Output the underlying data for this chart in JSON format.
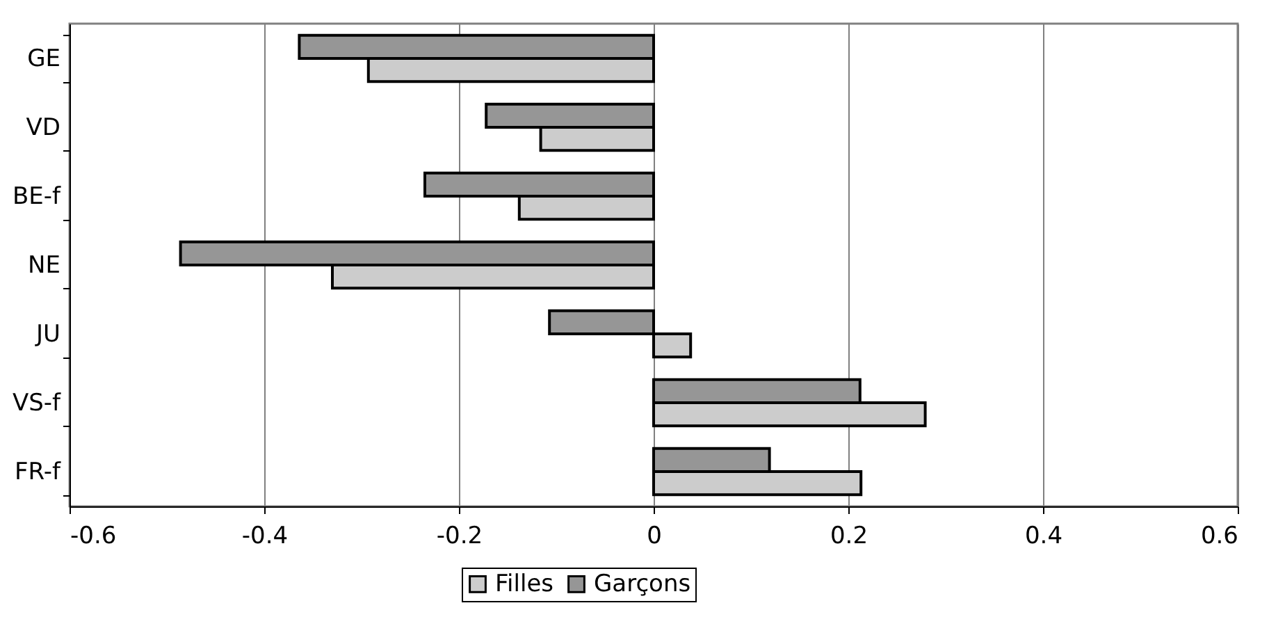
{
  "chart_data": {
    "type": "bar",
    "orientation": "horizontal",
    "categories": [
      "GE",
      "VD",
      "BE-f",
      "NE",
      "JU",
      "VS-f",
      "FR-f"
    ],
    "series": [
      {
        "name": "Filles",
        "color": "#cccccc",
        "values": [
          -0.293,
          -0.116,
          -0.138,
          -0.33,
          0.038,
          0.279,
          0.213
        ]
      },
      {
        "name": "Garçons",
        "color": "#969696",
        "values": [
          -0.364,
          -0.172,
          -0.235,
          -0.486,
          -0.107,
          0.212,
          0.119
        ]
      }
    ],
    "xlim": [
      -0.6,
      0.6
    ],
    "xticks": [
      -0.6,
      -0.4,
      -0.2,
      {
        "value": 0,
        "label": "0"
      },
      0.2,
      0.4,
      0.6
    ],
    "grid": "x",
    "legend": "bottom"
  }
}
